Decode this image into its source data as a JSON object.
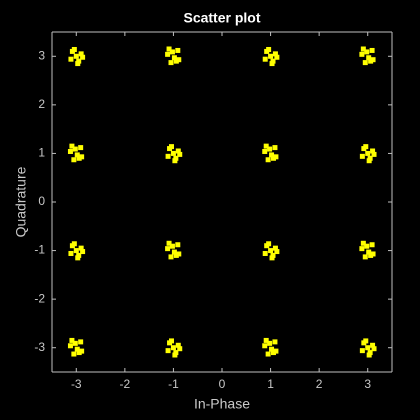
{
  "chart_data": {
    "type": "scatter",
    "title": "Scatter plot",
    "xlabel": "In-Phase",
    "ylabel": "Quadrature",
    "color": "#ffff00",
    "xlim": [
      -3.5,
      3.5
    ],
    "ylim": [
      -3.5,
      3.5
    ],
    "xticks": [
      -3,
      -2,
      -1,
      0,
      1,
      2,
      3
    ],
    "yticks": [
      -3,
      -2,
      -1,
      0,
      1,
      2,
      3
    ],
    "x": [
      -3,
      -2.9,
      -3.08,
      -2.95,
      -3.11,
      -2.87,
      -3.04,
      -2.97,
      -0.98,
      -1.12,
      -0.91,
      -1.05,
      -0.89,
      -1.02,
      -0.94,
      -1.09,
      1,
      1.1,
      0.92,
      1.05,
      0.89,
      1.13,
      0.96,
      1.03,
      3.02,
      2.88,
      3.09,
      2.95,
      3.11,
      2.98,
      3.06,
      2.91,
      -2.98,
      -3.12,
      -2.91,
      -3.05,
      -2.89,
      -3.02,
      -2.94,
      -3.09,
      -1,
      -0.9,
      -1.08,
      -0.95,
      -1.11,
      -0.87,
      -1.04,
      -0.97,
      1.02,
      0.88,
      1.09,
      0.95,
      1.11,
      0.98,
      1.06,
      0.91,
      3,
      3.1,
      2.92,
      3.05,
      2.89,
      3.13,
      2.96,
      3.03,
      -3,
      -2.9,
      -3.08,
      -2.95,
      -3.11,
      -2.87,
      -3.04,
      -2.97,
      -0.98,
      -1.12,
      -0.91,
      -1.05,
      -0.89,
      -1.02,
      -0.94,
      -1.09,
      1,
      1.1,
      0.92,
      1.05,
      0.89,
      1.13,
      0.96,
      1.03,
      3.02,
      2.88,
      3.09,
      2.95,
      3.11,
      2.98,
      3.06,
      2.91,
      -2.98,
      -3.12,
      -2.91,
      -3.05,
      -2.89,
      -3.02,
      -2.94,
      -3.09,
      -1,
      -0.9,
      -1.08,
      -0.95,
      -1.11,
      -0.87,
      -1.04,
      -0.97,
      1.02,
      0.88,
      1.09,
      0.95,
      1.11,
      0.98,
      1.06,
      0.91,
      3,
      3.1,
      2.92,
      3.05,
      2.89,
      3.13,
      2.96,
      3.03
    ],
    "y": [
      3,
      3.05,
      3.1,
      2.9,
      2.94,
      2.98,
      3.14,
      2.85,
      2.97,
      3.04,
      3.12,
      2.87,
      2.93,
      3.09,
      2.9,
      3.15,
      3,
      3.05,
      3.1,
      2.9,
      2.94,
      2.98,
      3.14,
      2.85,
      2.97,
      3.04,
      3.12,
      2.87,
      2.93,
      3.09,
      2.9,
      3.15,
      0.97,
      1.04,
      1.12,
      0.87,
      0.93,
      1.09,
      0.9,
      1.15,
      1,
      1.05,
      1.1,
      0.9,
      0.94,
      0.98,
      1.14,
      0.85,
      0.97,
      1.04,
      1.12,
      0.87,
      0.93,
      1.09,
      0.9,
      1.15,
      1,
      1.05,
      1.1,
      0.9,
      0.94,
      0.98,
      1.14,
      0.85,
      -1,
      -0.95,
      -0.9,
      -1.1,
      -1.06,
      -1.02,
      -0.86,
      -1.15,
      -1.03,
      -0.96,
      -0.88,
      -1.13,
      -1.07,
      -0.91,
      -1.1,
      -0.85,
      -1,
      -0.95,
      -0.9,
      -1.1,
      -1.06,
      -1.02,
      -0.86,
      -1.15,
      -1.03,
      -0.96,
      -0.88,
      -1.13,
      -1.07,
      -0.91,
      -1.1,
      -0.85,
      -3.03,
      -2.96,
      -2.88,
      -3.13,
      -3.07,
      -2.91,
      -3.1,
      -2.85,
      -3,
      -2.95,
      -2.9,
      -3.1,
      -3.06,
      -3.02,
      -2.86,
      -3.15,
      -3.03,
      -2.96,
      -2.88,
      -3.13,
      -3.07,
      -2.91,
      -3.1,
      -2.85,
      -3,
      -2.95,
      -2.9,
      -3.1,
      -3.06,
      -3.02,
      -2.86,
      -3.15
    ]
  }
}
